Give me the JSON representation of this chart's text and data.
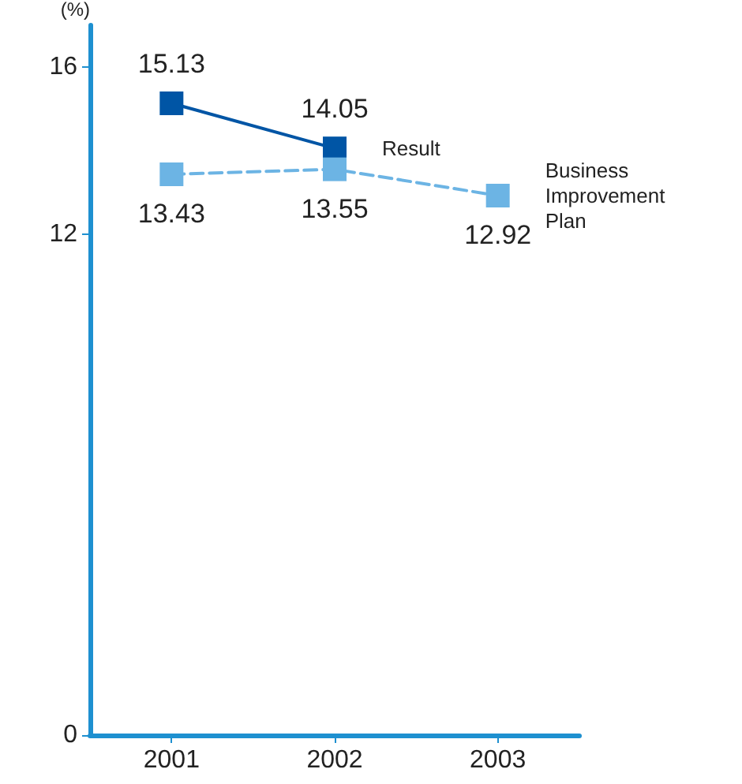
{
  "chart_data": {
    "type": "line",
    "ylabel": "(%)",
    "categories": [
      "2001",
      "2002",
      "2003"
    ],
    "series": [
      {
        "name": "Result",
        "color": "#0055a5",
        "values": [
          15.13,
          14.05,
          null
        ],
        "line_style": "solid"
      },
      {
        "name": "Business Improvement Plan",
        "color": "#6cb4e4",
        "values": [
          13.43,
          13.55,
          12.92
        ],
        "line_style": "dashed"
      }
    ],
    "ylim": [
      0,
      17
    ],
    "yticks": [
      0,
      12,
      16
    ],
    "marker": "square",
    "data_labels": true,
    "grid": false,
    "legend": false
  }
}
